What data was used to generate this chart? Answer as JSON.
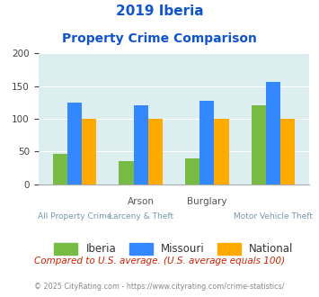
{
  "title_line1": "2019 Iberia",
  "title_line2": "Property Crime Comparison",
  "cat_labels_top": [
    "",
    "Arson",
    "",
    "Burglary"
  ],
  "cat_labels_bottom": [
    "All Property Crime",
    "Larceny & Theft",
    "",
    "Motor Vehicle Theft"
  ],
  "iberia": [
    46,
    35,
    40,
    121
  ],
  "missouri": [
    125,
    120,
    127,
    156
  ],
  "national": [
    100,
    100,
    100,
    100
  ],
  "iberia_color": "#77bb44",
  "missouri_color": "#3388ff",
  "national_color": "#ffaa00",
  "bg_color": "#ddeef0",
  "title_color": "#1155cc",
  "ylim": [
    0,
    200
  ],
  "yticks": [
    0,
    50,
    100,
    150,
    200
  ],
  "legend_labels": [
    "Iberia",
    "Missouri",
    "National"
  ],
  "footnote1": "Compared to U.S. average. (U.S. average equals 100)",
  "footnote2": "© 2025 CityRating.com - https://www.cityrating.com/crime-statistics/",
  "footnote1_color": "#cc2200",
  "footnote2_color": "#888888"
}
